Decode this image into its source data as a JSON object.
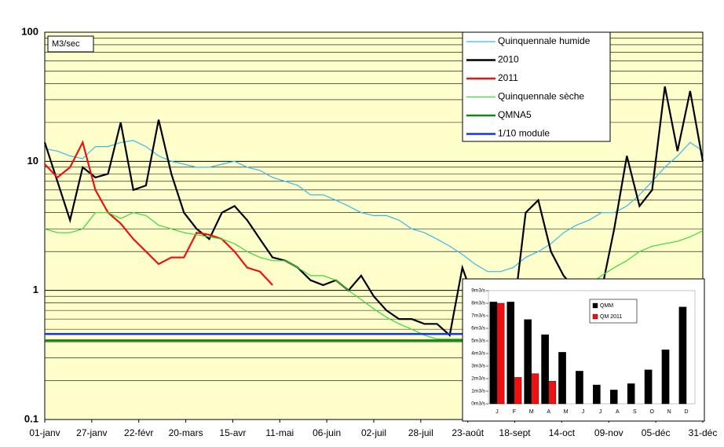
{
  "chart_data": [
    {
      "type": "line",
      "log_y": true,
      "y_label": "M3/sec",
      "x": [
        1,
        8,
        15,
        22,
        29,
        36,
        43,
        50,
        57,
        64,
        71,
        78,
        85,
        92,
        99,
        106,
        113,
        120,
        127,
        134,
        141,
        148,
        155,
        162,
        169,
        176,
        183,
        190,
        197,
        204,
        211,
        218,
        225,
        232,
        239,
        246,
        253,
        260,
        267,
        274,
        281,
        288,
        295,
        302,
        309,
        316,
        323,
        330,
        337,
        344,
        351,
        358,
        365
      ],
      "xlim": [
        1,
        365
      ],
      "xticks": [
        {
          "value": 1,
          "label": "01-janv"
        },
        {
          "value": 27,
          "label": "27-janv"
        },
        {
          "value": 53,
          "label": "22-févr"
        },
        {
          "value": 79,
          "label": "20-mars"
        },
        {
          "value": 105,
          "label": "15-avr"
        },
        {
          "value": 131,
          "label": "11-mai"
        },
        {
          "value": 157,
          "label": "06-juin"
        },
        {
          "value": 183,
          "label": "02-juil"
        },
        {
          "value": 209,
          "label": "28-juil"
        },
        {
          "value": 235,
          "label": "23-août"
        },
        {
          "value": 261,
          "label": "18-sept"
        },
        {
          "value": 287,
          "label": "14-oct"
        },
        {
          "value": 313,
          "label": "09-nov"
        },
        {
          "value": 339,
          "label": "05-déc"
        },
        {
          "value": 365,
          "label": "31-déc"
        }
      ],
      "ylim": [
        0.1,
        100
      ],
      "yticks": [
        0.1,
        1,
        10,
        100
      ],
      "minor_yticks": [
        0.2,
        0.3,
        0.4,
        0.5,
        0.6,
        0.7,
        0.8,
        0.9,
        2,
        3,
        4,
        5,
        6,
        7,
        8,
        9,
        20,
        30,
        40,
        50,
        60,
        70,
        80,
        90
      ],
      "grid": true,
      "series": [
        {
          "name": "Quinquennale humide",
          "color": "#33bbee",
          "values": [
            12.5,
            12,
            11,
            10.5,
            13,
            13,
            14,
            14.5,
            13,
            11,
            10,
            9.5,
            9,
            9,
            9.5,
            10,
            9,
            8.5,
            7.5,
            7,
            6.5,
            5.5,
            5.5,
            5,
            4.5,
            4,
            3.8,
            3.8,
            3.5,
            3,
            2.8,
            2.5,
            2.2,
            1.9,
            1.6,
            1.4,
            1.4,
            1.5,
            1.8,
            2,
            2.3,
            2.8,
            3.2,
            3.5,
            4,
            4,
            4.5,
            5.5,
            7,
            9,
            11,
            14,
            12
          ]
        },
        {
          "name": "2010",
          "color": "#000000",
          "values": [
            14,
            7,
            3.5,
            9,
            7.5,
            8,
            20,
            6,
            6.5,
            21,
            8,
            4,
            3,
            2.5,
            4,
            4.5,
            3.5,
            2.5,
            1.8,
            1.7,
            1.5,
            1.2,
            1.1,
            1.2,
            1.0,
            1.3,
            0.9,
            0.7,
            0.6,
            0.6,
            0.55,
            0.55,
            0.45,
            1.5,
            0.8,
            0.7,
            0.6,
            0.6,
            4,
            5,
            2,
            1.3,
            1,
            1.1,
            1,
            3,
            11,
            4.5,
            6,
            38,
            12,
            35,
            10
          ]
        },
        {
          "name": "2011",
          "color": "#ee1111",
          "values": [
            9.5,
            7.5,
            9,
            14,
            6,
            4,
            3.3,
            2.5,
            2,
            1.6,
            1.8,
            1.8,
            2.8,
            2.7,
            2.5,
            2,
            1.5,
            1.4,
            1.1,
            null,
            null,
            null,
            null,
            null,
            null,
            null,
            null,
            null,
            null,
            null,
            null,
            null,
            null,
            null,
            null,
            null,
            null,
            null,
            null,
            null,
            null,
            null,
            null,
            null,
            null,
            null,
            null,
            null,
            null,
            null,
            null,
            null,
            null
          ]
        },
        {
          "name": "Quinquennale sèche",
          "color": "#33dd33",
          "values": [
            3,
            2.8,
            2.8,
            3,
            4,
            4,
            3.6,
            4,
            3.8,
            3.2,
            3,
            2.8,
            2.7,
            2.6,
            2.5,
            2.3,
            2.0,
            1.8,
            1.7,
            1.7,
            1.5,
            1.3,
            1.3,
            1.2,
            1.0,
            0.85,
            0.72,
            0.62,
            0.55,
            0.5,
            0.45,
            0.42,
            0.42,
            0.42,
            0.42,
            0.45,
            0.5,
            0.55,
            0.6,
            0.7,
            0.8,
            0.9,
            1.0,
            1.1,
            1.3,
            1.5,
            1.7,
            2.0,
            2.2,
            2.3,
            2.4,
            2.6,
            2.9
          ]
        },
        {
          "name": "QMNA5",
          "color": "#118811",
          "type": "hline",
          "value": 0.41
        },
        {
          "name": "1/10 module",
          "color": "#1133ee",
          "type": "hline",
          "value": 0.46
        }
      ]
    },
    {
      "type": "bar",
      "categories": [
        "J",
        "F",
        "M",
        "A",
        "M",
        "J",
        "J",
        "A",
        "S",
        "O",
        "N",
        "D"
      ],
      "ylim": [
        0,
        9
      ],
      "yticks": [
        {
          "value": 0,
          "label": "0m3/s"
        },
        {
          "value": 1,
          "label": "1m3/s"
        },
        {
          "value": 2,
          "label": "2m3/s"
        },
        {
          "value": 3,
          "label": "3m3/s"
        },
        {
          "value": 4,
          "label": "4m3/s"
        },
        {
          "value": 5,
          "label": "5m3/s"
        },
        {
          "value": 6,
          "label": "6m3/s"
        },
        {
          "value": 7,
          "label": "7m3/s"
        },
        {
          "value": 8,
          "label": "8m3/s"
        },
        {
          "value": 9,
          "label": "9m3/s"
        }
      ],
      "series": [
        {
          "name": "QMM",
          "color": "#000000",
          "values": [
            8.1,
            8.1,
            6.7,
            5.5,
            4.1,
            2.6,
            1.5,
            1.1,
            1.6,
            2.7,
            4.3,
            7.7
          ]
        },
        {
          "name": "QM 2011",
          "color": "#ee1111",
          "values": [
            8,
            2.1,
            2.4,
            1.8,
            null,
            null,
            null,
            null,
            null,
            null,
            null,
            null
          ]
        }
      ]
    }
  ]
}
